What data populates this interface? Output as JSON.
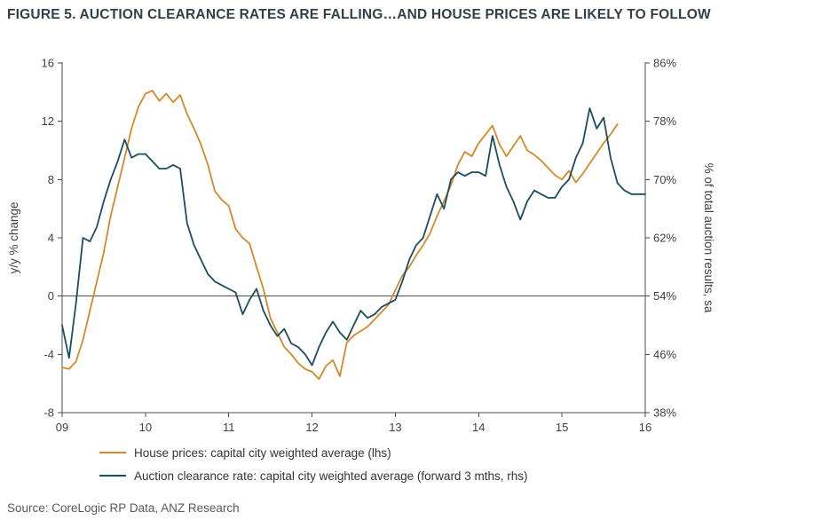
{
  "title": "FIGURE 5. AUCTION CLEARANCE RATES ARE FALLING…AND HOUSE PRICES ARE LIKELY TO FOLLOW",
  "source": "Source: CoreLogic RP Data, ANZ Research",
  "colors": {
    "house": "#d4882a",
    "clearance": "#1b4c60",
    "title": "#333f48",
    "axis": "#4d4d4d",
    "text": "#404040",
    "source_text": "#595959"
  },
  "chart_data": {
    "type": "line",
    "title": "FIGURE 5. AUCTION CLEARANCE RATES ARE FALLING…AND HOUSE PRICES ARE LIKELY TO FOLLOW",
    "x_ticks": [
      "09",
      "10",
      "11",
      "12",
      "13",
      "14",
      "15",
      "16"
    ],
    "x_range": [
      2009,
      2016
    ],
    "grid": "off",
    "legend_position": "bottom-left",
    "zero_line_lhs": 0,
    "lhs": {
      "label": "y/y % change",
      "ticks": [
        -8,
        -4,
        0,
        4,
        8,
        12,
        16
      ],
      "min": -8,
      "max": 16
    },
    "rhs": {
      "label": "% of total auction results, sa",
      "ticks": [
        "38%",
        "46%",
        "54%",
        "62%",
        "70%",
        "78%",
        "86%"
      ],
      "tick_values": [
        38,
        46,
        54,
        62,
        70,
        78,
        86
      ],
      "min": 38,
      "max": 86
    },
    "series": [
      {
        "name": "House prices: capital city weighted average (lhs)",
        "axis": "lhs",
        "color": "#d4882a",
        "x_start": 2009.0,
        "x_step_months": 1,
        "values": [
          -4.9,
          -5.0,
          -4.5,
          -3.0,
          -1.0,
          1.0,
          3.0,
          5.5,
          7.5,
          9.5,
          11.5,
          13.0,
          13.9,
          14.1,
          13.4,
          13.9,
          13.3,
          13.8,
          12.5,
          11.5,
          10.4,
          9.0,
          7.2,
          6.6,
          6.2,
          4.6,
          4.0,
          3.6,
          2.0,
          0.5,
          -1.5,
          -2.5,
          -3.5,
          -4.0,
          -4.6,
          -5.0,
          -5.2,
          -5.7,
          -4.8,
          -4.4,
          -5.5,
          -3.2,
          -2.7,
          -2.4,
          -2.1,
          -1.6,
          -1.1,
          -0.6,
          0.4,
          1.4,
          2.0,
          2.8,
          3.5,
          4.3,
          5.5,
          6.5,
          7.6,
          9.0,
          9.9,
          9.6,
          10.5,
          11.1,
          11.7,
          10.4,
          9.6,
          10.3,
          11.0,
          10.0,
          9.7,
          9.3,
          8.8,
          8.3,
          8.0,
          8.6,
          7.8,
          8.4,
          9.1,
          9.8,
          10.5,
          11.1,
          11.8
        ]
      },
      {
        "name": "Auction clearance rate: capital city weighted average (forward 3 mths, rhs)",
        "axis": "rhs",
        "color": "#1b4c60",
        "x_start": 2009.0,
        "x_step_months": 1,
        "values": [
          50.0,
          45.5,
          53.0,
          62.0,
          61.5,
          63.5,
          67.0,
          70.0,
          72.5,
          75.5,
          73.0,
          73.5,
          73.5,
          72.5,
          71.5,
          71.5,
          72.0,
          71.5,
          64.0,
          61.0,
          59.0,
          57.0,
          56.0,
          55.5,
          55.0,
          54.5,
          51.5,
          53.5,
          55.0,
          52.0,
          50.0,
          48.5,
          49.5,
          47.5,
          47.0,
          46.0,
          44.5,
          47.0,
          49.0,
          50.5,
          49.0,
          48.0,
          50.0,
          52.0,
          51.0,
          51.5,
          52.5,
          53.0,
          53.5,
          56.0,
          59.0,
          61.0,
          62.0,
          65.0,
          68.0,
          66.0,
          70.0,
          71.0,
          70.5,
          71.0,
          71.0,
          70.5,
          76.0,
          72.0,
          69.0,
          67.0,
          64.5,
          67.0,
          68.5,
          68.0,
          67.5,
          67.5,
          69.0,
          70.0,
          73.0,
          75.0,
          79.8,
          77.0,
          78.5,
          73.0,
          69.5,
          68.5,
          68.0,
          68.0,
          68.0
        ]
      }
    ]
  }
}
